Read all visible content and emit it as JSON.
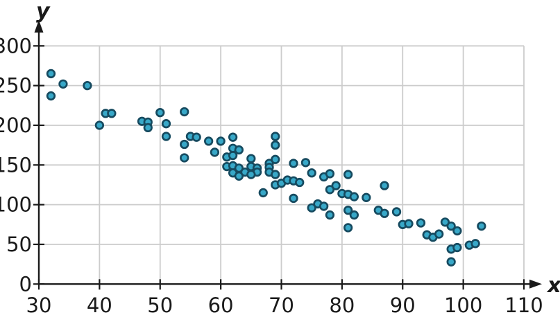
{
  "chart_data": {
    "type": "scatter",
    "title": "",
    "xlabel": "x",
    "ylabel": "y",
    "xlim": [
      30,
      110
    ],
    "ylim": [
      0,
      300
    ],
    "x_ticks": [
      30,
      40,
      50,
      60,
      70,
      80,
      90,
      100,
      110
    ],
    "y_ticks": [
      0,
      50,
      100,
      150,
      200,
      250,
      300
    ],
    "grid": true,
    "legend": "none",
    "points": [
      [
        32,
        265
      ],
      [
        34,
        252
      ],
      [
        32,
        237
      ],
      [
        38,
        250
      ],
      [
        40,
        200
      ],
      [
        41,
        215
      ],
      [
        42,
        215
      ],
      [
        47,
        205
      ],
      [
        48,
        204
      ],
      [
        48,
        197
      ],
      [
        50,
        216
      ],
      [
        51,
        202
      ],
      [
        51,
        186
      ],
      [
        54,
        217
      ],
      [
        54,
        176
      ],
      [
        54,
        159
      ],
      [
        55,
        186
      ],
      [
        56,
        185
      ],
      [
        58,
        180
      ],
      [
        60,
        180
      ],
      [
        59,
        166
      ],
      [
        61,
        160
      ],
      [
        62,
        162
      ],
      [
        62,
        171
      ],
      [
        63,
        169
      ],
      [
        62,
        185
      ],
      [
        61,
        148
      ],
      [
        62,
        149
      ],
      [
        63,
        146
      ],
      [
        62,
        140
      ],
      [
        63,
        136
      ],
      [
        64,
        141
      ],
      [
        65,
        158
      ],
      [
        65,
        148
      ],
      [
        66,
        146
      ],
      [
        66,
        141
      ],
      [
        65,
        138
      ],
      [
        67,
        115
      ],
      [
        68,
        152
      ],
      [
        68,
        147
      ],
      [
        68,
        141
      ],
      [
        69,
        186
      ],
      [
        69,
        175
      ],
      [
        69,
        157
      ],
      [
        69,
        138
      ],
      [
        69,
        125
      ],
      [
        70,
        127
      ],
      [
        71,
        131
      ],
      [
        72,
        130
      ],
      [
        73,
        128
      ],
      [
        72,
        108
      ],
      [
        72,
        152
      ],
      [
        74,
        153
      ],
      [
        75,
        140
      ],
      [
        77,
        135
      ],
      [
        78,
        139
      ],
      [
        78,
        119
      ],
      [
        79,
        124
      ],
      [
        75,
        96
      ],
      [
        76,
        101
      ],
      [
        77,
        98
      ],
      [
        78,
        87
      ],
      [
        80,
        114
      ],
      [
        81,
        113
      ],
      [
        81,
        138
      ],
      [
        82,
        110
      ],
      [
        84,
        109
      ],
      [
        81,
        93
      ],
      [
        82,
        87
      ],
      [
        81,
        71
      ],
      [
        86,
        93
      ],
      [
        87,
        89
      ],
      [
        87,
        124
      ],
      [
        89,
        91
      ],
      [
        90,
        75
      ],
      [
        91,
        76
      ],
      [
        93,
        77
      ],
      [
        94,
        62
      ],
      [
        95,
        59
      ],
      [
        96,
        63
      ],
      [
        97,
        78
      ],
      [
        98,
        73
      ],
      [
        99,
        67
      ],
      [
        98,
        44
      ],
      [
        99,
        46
      ],
      [
        98,
        28
      ],
      [
        101,
        49
      ],
      [
        102,
        51
      ],
      [
        103,
        73
      ]
    ]
  },
  "colors": {
    "point_fill": "#38A8C8",
    "point_stroke": "#164A5F",
    "grid": "#CCCCCC",
    "axis": "#1A1A1A",
    "tick_label": "#1A1A1A"
  }
}
